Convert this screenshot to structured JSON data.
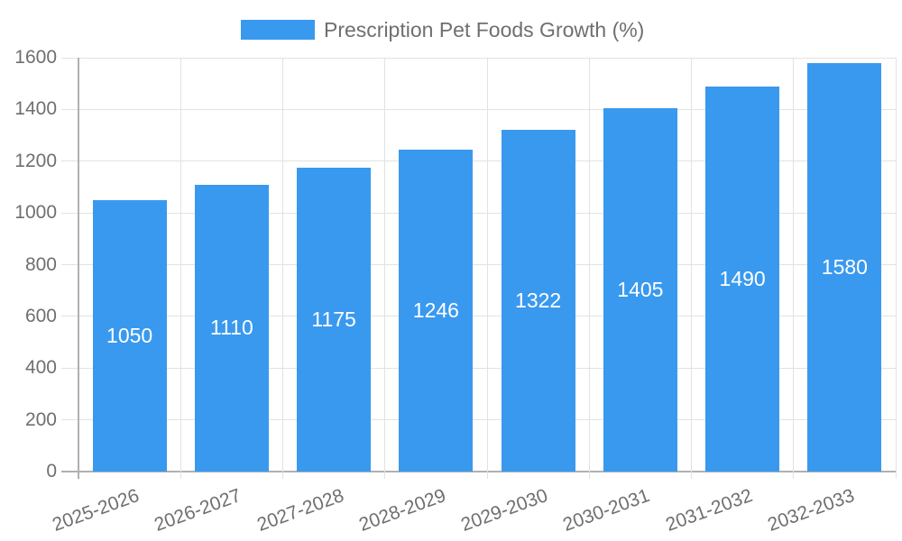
{
  "legend": {
    "label": "Prescription Pet Foods Growth (%)"
  },
  "chart_data": {
    "type": "bar",
    "title": "Prescription Pet Foods Growth (%)",
    "categories": [
      "2025-2026",
      "2026-2027",
      "2027-2028",
      "2028-2029",
      "2029-2030",
      "2030-2031",
      "2031-2032",
      "2032-2033"
    ],
    "values": [
      1050,
      1110,
      1175,
      1246,
      1322,
      1405,
      1490,
      1580
    ],
    "xlabel": "",
    "ylabel": "",
    "ylim": [
      0,
      1600
    ],
    "yticks": [
      0,
      200,
      400,
      600,
      800,
      1000,
      1200,
      1400,
      1600
    ],
    "grid": true,
    "legend_position": "top",
    "value_labels_inside_bars": true
  },
  "colors": {
    "bar": "#3999ef",
    "grid": "#e2e2e2",
    "axis": "#b0b0b0",
    "tick_text": "#6f6f6f",
    "legend_text": "#6f6f6f",
    "value_label": "#ffffff",
    "background": "#ffffff"
  }
}
